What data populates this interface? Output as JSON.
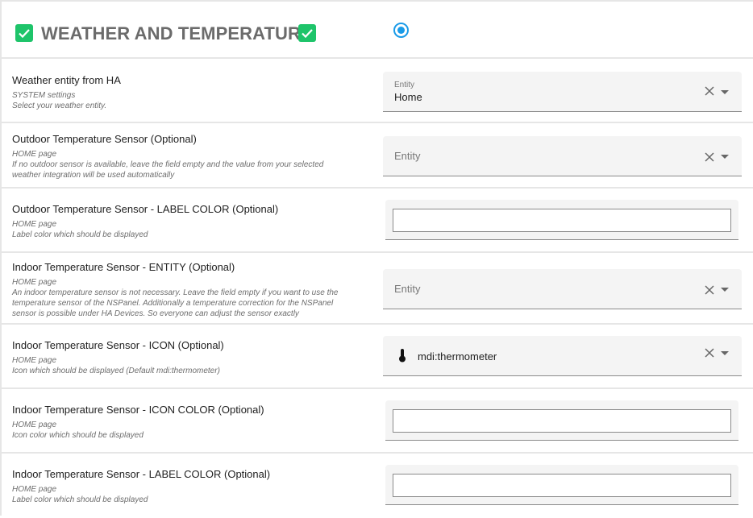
{
  "header": {
    "title": "WEATHER AND TEMPERATURE",
    "colors": {
      "check": "#1ec46a",
      "radio": "#1a9be8"
    },
    "radio_selected": true
  },
  "rows": [
    {
      "label": "Weather entity from HA",
      "desc": [
        "SYSTEM settings",
        "Select your weather entity."
      ],
      "field": {
        "type": "entity",
        "floating_label": "Entity",
        "value": "Home"
      }
    },
    {
      "label": "Outdoor Temperature Sensor (Optional)",
      "desc": [
        "HOME page",
        "If no outdoor sensor is available, leave the field empty and the value from your selected",
        "weather integration will be used automatically"
      ],
      "field": {
        "type": "entity",
        "placeholder": "Entity"
      }
    },
    {
      "label": "Outdoor Temperature Sensor - LABEL COLOR (Optional)",
      "desc": [
        "HOME page",
        "Label color which should be displayed"
      ],
      "field": {
        "type": "color",
        "value": ""
      }
    },
    {
      "label": "Indoor Temperature Sensor - ENTITY (Optional)",
      "desc": [
        "HOME page",
        "An indoor temperature sensor is not necessary. Leave the field empty if you want to use the",
        "temperature sensor of the NSPanel. Additionally a temperature correction for the NSPanel",
        "sensor is possible under HA Devices. So everyone can adjust the sensor exactly"
      ],
      "field": {
        "type": "entity",
        "placeholder": "Entity"
      }
    },
    {
      "label": "Indoor Temperature Sensor - ICON (Optional)",
      "desc": [
        "HOME page",
        "Icon which should be displayed (Default mdi:thermometer)"
      ],
      "field": {
        "type": "icon",
        "value": "mdi:thermometer",
        "icon": "thermometer-icon"
      }
    },
    {
      "label": "Indoor Temperature Sensor - ICON COLOR (Optional)",
      "desc": [
        "HOME page",
        "Icon color which should be displayed"
      ],
      "field": {
        "type": "color",
        "value": ""
      }
    },
    {
      "label": "Indoor Temperature Sensor - LABEL COLOR (Optional)",
      "desc": [
        "HOME page",
        "Label color which should be displayed"
      ],
      "field": {
        "type": "color",
        "value": ""
      }
    }
  ]
}
